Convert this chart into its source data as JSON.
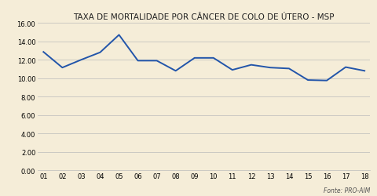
{
  "title": "TAXA DE MORTALIDADE POR CÂNCER DE COLO DE ÚTERO - MSP",
  "fonte": "Fonte: PRO-AIM",
  "x_labels": [
    "01",
    "02",
    "03",
    "04",
    "05",
    "06",
    "07",
    "08",
    "09",
    "10",
    "11",
    "12",
    "13",
    "14",
    "15",
    "16",
    "17",
    "18"
  ],
  "values": [
    12.85,
    11.15,
    12.0,
    12.8,
    14.7,
    11.9,
    11.9,
    10.8,
    12.2,
    12.2,
    10.9,
    11.45,
    11.15,
    11.05,
    9.8,
    9.75,
    11.2,
    10.8
  ],
  "line_color": "#2255AA",
  "background_color": "#F5EDD8",
  "plot_bg_color": "#F5EDD8",
  "grid_color": "#BBBBBB",
  "ylim": [
    0,
    16
  ],
  "yticks": [
    0.0,
    2.0,
    4.0,
    6.0,
    8.0,
    10.0,
    12.0,
    14.0,
    16.0
  ],
  "title_fontsize": 7.5,
  "tick_fontsize": 6,
  "fonte_fontsize": 5.5
}
